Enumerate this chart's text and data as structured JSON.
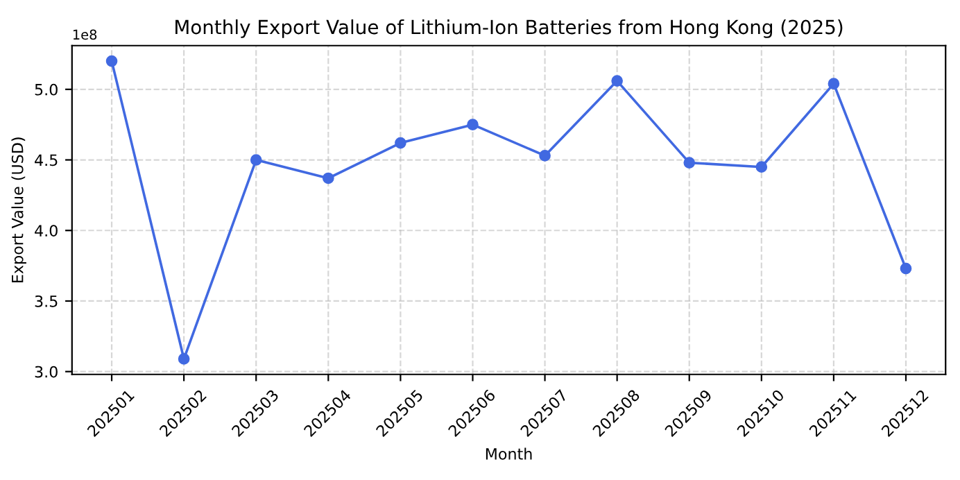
{
  "chart_data": {
    "type": "line",
    "title": "Monthly Export Value of Lithium-Ion Batteries from Hong Kong (2025)",
    "xlabel": "Month",
    "ylabel": "Export Value (USD)",
    "categories": [
      "202501",
      "202502",
      "202503",
      "202504",
      "202505",
      "202506",
      "202507",
      "202508",
      "202509",
      "202510",
      "202511",
      "202512"
    ],
    "series": [
      {
        "color": "#4169e1",
        "values": [
          5.2,
          3.09,
          4.5,
          4.37,
          4.62,
          4.75,
          4.53,
          5.06,
          4.48,
          4.45,
          5.04,
          3.73
        ]
      }
    ],
    "ylim": [
      2.98,
      5.31
    ],
    "yticks": [
      {
        "value": 3,
        "label": "3.0"
      },
      3.5,
      {
        "value": 4,
        "label": "4.0"
      },
      4.5,
      {
        "value": 5,
        "label": "5.0"
      }
    ],
    "annotations": [
      "1e8"
    ],
    "grid": true,
    "marker": "circle",
    "line_style": "solid"
  }
}
